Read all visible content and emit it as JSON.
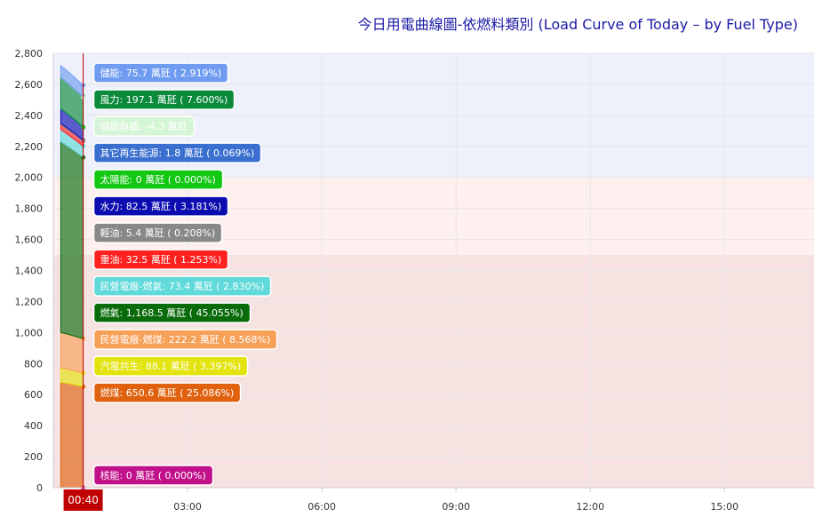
{
  "title": "今日用電曲線圖-依燃料類別 (Load Curve of Today – by Fuel Type)",
  "time_marker": "00:40",
  "chart_data": {
    "type": "area",
    "title": "今日用電曲線圖-依燃料類別 (Load Curve of Today – by Fuel Type)",
    "ylim": [
      0,
      2800
    ],
    "yticks": [
      0,
      200,
      400,
      600,
      800,
      1000,
      1200,
      1400,
      1600,
      1800,
      2000,
      2200,
      2400,
      2600,
      2800
    ],
    "ytick_labels": [
      "0",
      "200",
      "400",
      "600",
      "800",
      "1,000",
      "1,200",
      "1,400",
      "1,600",
      "1,800",
      "2,000",
      "2,200",
      "2,400",
      "2,600",
      "2,800"
    ],
    "xlim": [
      "00:00",
      "17:00"
    ],
    "xtick_labels": [
      "03:00",
      "06:00",
      "09:00",
      "12:00",
      "15:00"
    ],
    "x": [
      "00:10",
      "00:20",
      "00:30",
      "00:40"
    ],
    "bands": [
      {
        "from": 0,
        "to": 1500,
        "color": "#f7e2e2"
      },
      {
        "from": 1500,
        "to": 2000,
        "color": "#fdf0ef"
      },
      {
        "from": 2000,
        "to": 2800,
        "color": "#eef0fb"
      }
    ],
    "series": [
      {
        "name": "核能",
        "label": "核能: 0 萬瓩 ( 0.000%)",
        "color": "#c0108a",
        "values": [
          0,
          0,
          0,
          0
        ]
      },
      {
        "name": "燃煤",
        "label": "燃煤: 650.6 萬瓩 ( 25.086%)",
        "color": "#e0620f",
        "values": [
          680,
          672,
          662,
          650.6
        ]
      },
      {
        "name": "汽電共生",
        "label": "汽電共生: 88.1 萬瓩 ( 3.397%)",
        "color": "#e3e30e",
        "values": [
          92,
          91,
          89,
          88.1
        ]
      },
      {
        "name": "民營電廠-燃煤",
        "label": "民營電廠-燃煤: 222.2 萬瓩 ( 8.568%)",
        "color": "#f7a058",
        "values": [
          228,
          226,
          224,
          222.2
        ]
      },
      {
        "name": "燃氣",
        "label": "燃氣: 1,168.5 萬瓩 ( 45.055%)",
        "color": "#0a6b0a",
        "values": [
          1230,
          1210,
          1190,
          1168.5
        ]
      },
      {
        "name": "民營電廠-燃氣",
        "label": "民營電廠-燃氣: 73.4 萬瓩 ( 2.830%)",
        "color": "#5fd9d9",
        "values": [
          78,
          76,
          75,
          73.4
        ]
      },
      {
        "name": "重油",
        "label": "重油: 32.5 萬瓩 ( 1.253%)",
        "color": "#ff2020",
        "values": [
          34,
          33,
          33,
          32.5
        ]
      },
      {
        "name": "輕油",
        "label": "輕油: 5.4 萬瓩 ( 0.208%)",
        "color": "#888888",
        "values": [
          6,
          6,
          5.5,
          5.4
        ]
      },
      {
        "name": "水力",
        "label": "水力: 82.5 萬瓩 ( 3.181%)",
        "color": "#0c0cb0",
        "values": [
          92,
          90,
          86,
          82.5
        ]
      },
      {
        "name": "其它再生能源",
        "label": "其它再生能源: 1.8 萬瓩 ( 0.069%)",
        "color": "#3a6fcf",
        "values": [
          1.8,
          1.8,
          1.8,
          1.8
        ]
      },
      {
        "name": "太陽能",
        "label": "太陽能: 0 萬瓩 ( 0.000%)",
        "color": "#12c812",
        "values": [
          0,
          0,
          0,
          0
        ]
      },
      {
        "name": "風力",
        "label": "風力: 197.1 萬瓩 ( 7.600%)",
        "color": "#0a8a3a",
        "values": [
          205,
          202,
          200,
          197.1
        ]
      },
      {
        "name": "儲能負載",
        "label": "儲能負載: -4.3 萬瓩",
        "color": "#d6f5d6",
        "values": [
          -4.3,
          -4.3,
          -4.3,
          -4.3
        ]
      },
      {
        "name": "儲能",
        "label": "儲能: 75.7 萬瓩 ( 2.919%)",
        "color": "#6f9cf0",
        "values": [
          78,
          77,
          76,
          75.7
        ]
      }
    ]
  }
}
